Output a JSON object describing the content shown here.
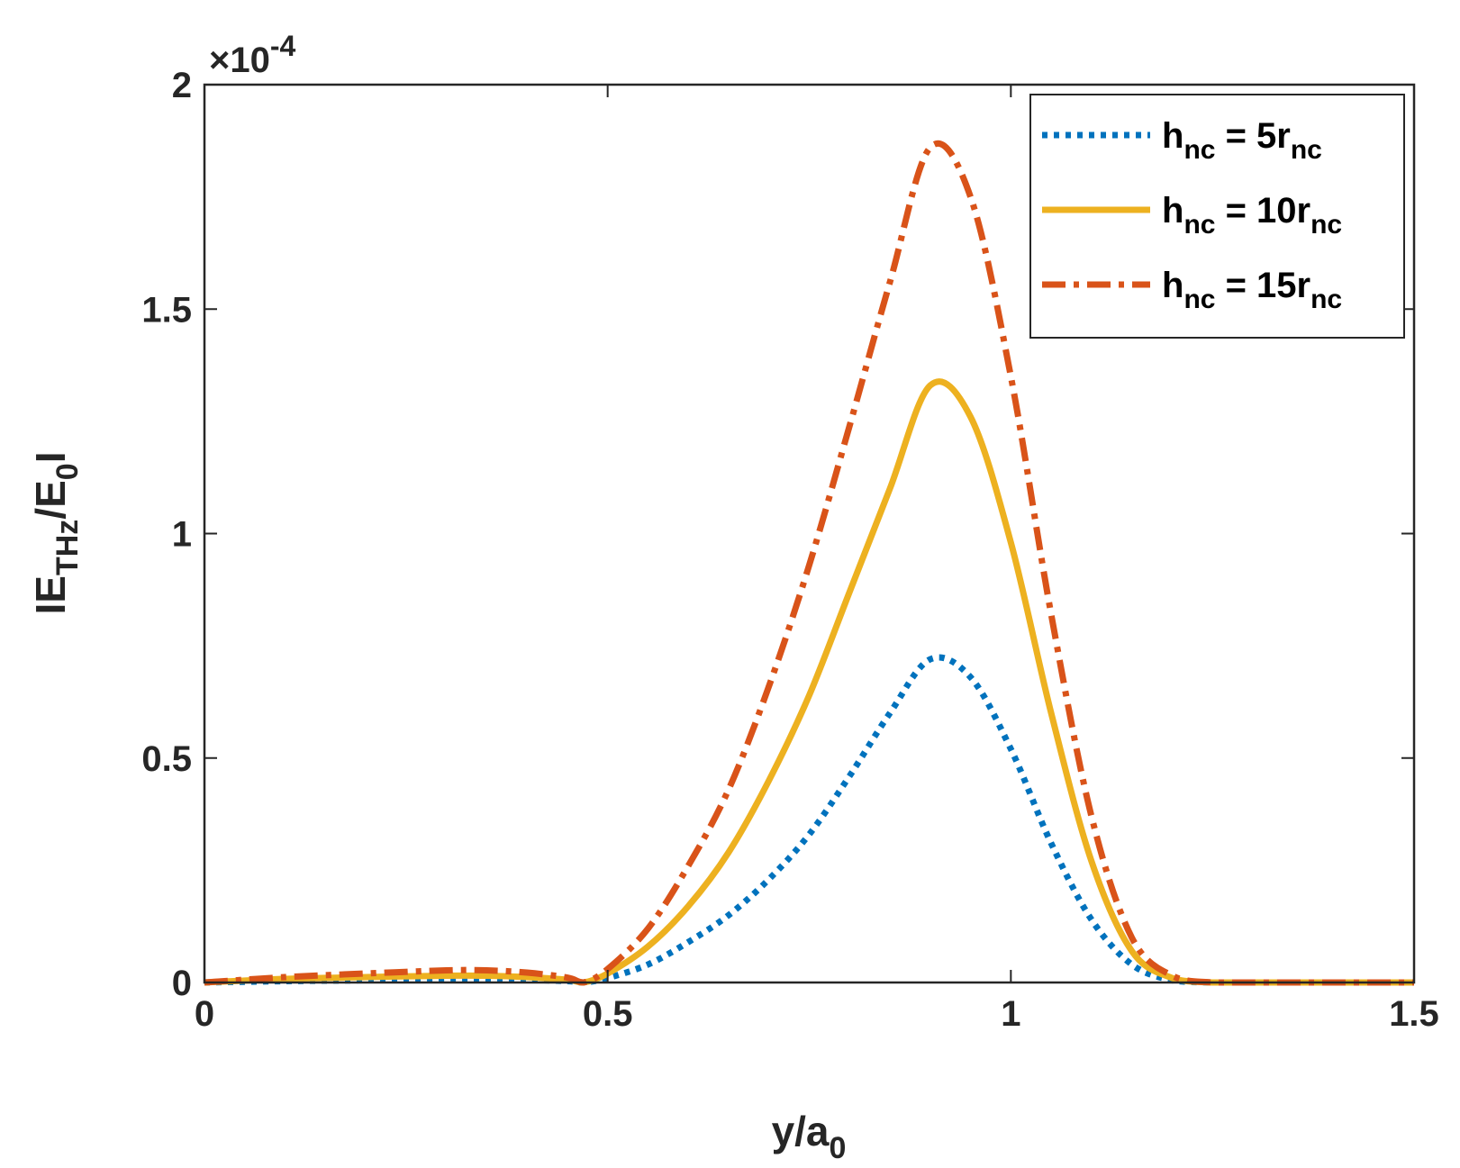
{
  "chart_data": {
    "type": "line",
    "title": "",
    "xlabel": {
      "main": "y/a",
      "sub": "0"
    },
    "ylabel": {
      "p1": "IE",
      "sub1": "THz",
      "p2": "/E",
      "sub2": "0",
      "p3": "I"
    },
    "exponent_label": {
      "prefix": "×10",
      "power": "-4"
    },
    "xlim": [
      0,
      1.5
    ],
    "ylim": [
      0,
      2
    ],
    "xticks": [
      0,
      0.5,
      1,
      1.5
    ],
    "xtick_labels": [
      "0",
      "0.5",
      "1",
      "1.5"
    ],
    "yticks": [
      0,
      0.5,
      1,
      1.5,
      2
    ],
    "ytick_labels": [
      "0",
      "0.5",
      "1",
      "1.5",
      "2"
    ],
    "legend_position": "top-right",
    "series": [
      {
        "name": "h_nc = 5r_nc",
        "label_main": "h",
        "label_sub": "nc",
        "label_mid": " = 5r",
        "label_sub2": "nc",
        "color": "#0072BD",
        "style": "dotted",
        "x": [
          0,
          0.1,
          0.2,
          0.3,
          0.35,
          0.4,
          0.45,
          0.47,
          0.5,
          0.55,
          0.6,
          0.65,
          0.7,
          0.75,
          0.8,
          0.85,
          0.9,
          0.95,
          1.0,
          1.05,
          1.1,
          1.15,
          1.2,
          1.25,
          1.3,
          1.4,
          1.5
        ],
        "y": [
          0,
          0.003,
          0.005,
          0.007,
          0.007,
          0.006,
          0.003,
          0,
          0.01,
          0.04,
          0.09,
          0.15,
          0.23,
          0.33,
          0.46,
          0.6,
          0.72,
          0.68,
          0.52,
          0.31,
          0.14,
          0.04,
          0.005,
          0,
          0,
          0,
          0
        ]
      },
      {
        "name": "h_nc = 10r_nc",
        "label_main": "h",
        "label_sub": "nc",
        "label_mid": " = 10r",
        "label_sub2": "nc",
        "color": "#EDB120",
        "style": "solid",
        "x": [
          0,
          0.1,
          0.2,
          0.3,
          0.35,
          0.4,
          0.45,
          0.47,
          0.5,
          0.55,
          0.6,
          0.65,
          0.7,
          0.75,
          0.8,
          0.85,
          0.9,
          0.95,
          1.0,
          1.05,
          1.1,
          1.15,
          1.2,
          1.25,
          1.3,
          1.4,
          1.5
        ],
        "y": [
          0,
          0.008,
          0.012,
          0.015,
          0.015,
          0.012,
          0.006,
          0,
          0.02,
          0.08,
          0.17,
          0.29,
          0.45,
          0.64,
          0.87,
          1.1,
          1.33,
          1.26,
          0.98,
          0.6,
          0.27,
          0.07,
          0.01,
          0,
          0,
          0,
          0
        ]
      },
      {
        "name": "h_nc = 15r_nc",
        "label_main": "h",
        "label_sub": "nc",
        "label_mid": " = 15r",
        "label_sub2": "nc",
        "color": "#D95319",
        "style": "dashdot",
        "x": [
          0,
          0.1,
          0.2,
          0.3,
          0.35,
          0.4,
          0.45,
          0.47,
          0.5,
          0.55,
          0.6,
          0.65,
          0.7,
          0.75,
          0.8,
          0.85,
          0.9,
          0.95,
          1.0,
          1.05,
          1.1,
          1.15,
          1.2,
          1.25,
          1.3,
          1.4,
          1.5
        ],
        "y": [
          0,
          0.012,
          0.02,
          0.027,
          0.027,
          0.022,
          0.011,
          0,
          0.03,
          0.12,
          0.26,
          0.43,
          0.66,
          0.93,
          1.24,
          1.56,
          1.86,
          1.75,
          1.35,
          0.82,
          0.37,
          0.1,
          0.015,
          0,
          0,
          0,
          0
        ]
      }
    ]
  }
}
